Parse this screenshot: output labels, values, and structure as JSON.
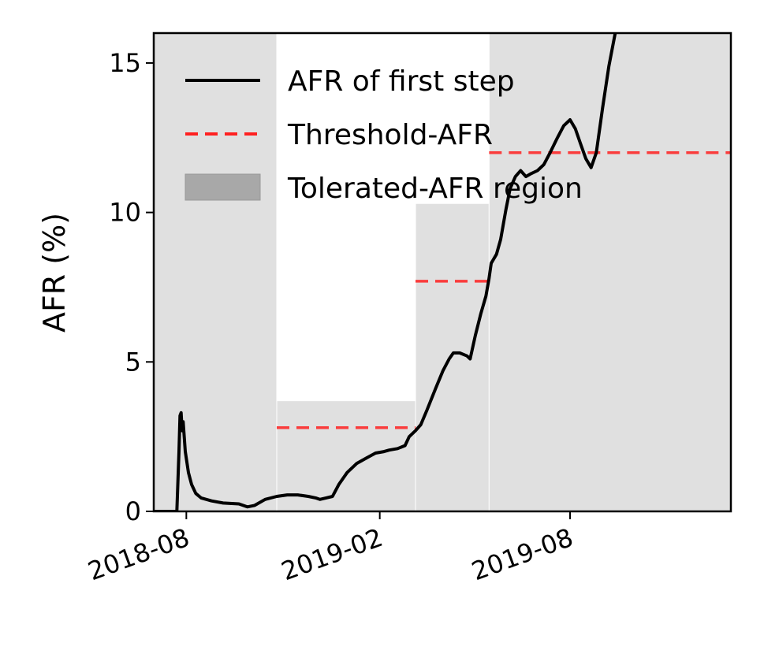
{
  "chart_data": {
    "type": "line",
    "title": "",
    "xlabel": "",
    "ylabel": "AFR (%)",
    "ylim": [
      0,
      16
    ],
    "xlim": [
      "2018-07-01",
      "2020-01-01"
    ],
    "x_ticks": [
      "2018-08",
      "2019-02",
      "2019-08"
    ],
    "y_ticks": [
      0,
      5,
      10,
      15
    ],
    "grid": false,
    "legend_position": "top-left",
    "legend": {
      "line_label": "AFR of first step",
      "threshold_label": "Threshold-AFR",
      "region_label": "Tolerated-AFR region"
    },
    "colors": {
      "line": "#000000",
      "threshold": "#ff2020",
      "region": "#e0e0e0",
      "region_legend": "#a8a8a8"
    },
    "tolerated_regions": [
      {
        "start": "2018-07-01",
        "end": "2018-10-26",
        "top": 16
      },
      {
        "start": "2018-10-26",
        "end": "2019-03-07",
        "top": 3.7
      },
      {
        "start": "2019-03-07",
        "end": "2019-05-16",
        "top": 10.3
      },
      {
        "start": "2019-05-16",
        "end": "2020-01-01",
        "top": 16
      }
    ],
    "thresholds": [
      {
        "start": "2018-10-26",
        "end": "2019-03-07",
        "value": 2.8
      },
      {
        "start": "2019-03-07",
        "end": "2019-05-16",
        "value": 7.7
      },
      {
        "start": "2019-05-16",
        "end": "2020-01-01",
        "value": 12.0
      }
    ],
    "series": [
      {
        "name": "AFR of first step",
        "points": [
          [
            "2018-07-23",
            0.0
          ],
          [
            "2018-07-25",
            2.0
          ],
          [
            "2018-07-26",
            3.2
          ],
          [
            "2018-07-27",
            3.3
          ],
          [
            "2018-07-28",
            2.7
          ],
          [
            "2018-07-29",
            3.0
          ],
          [
            "2018-07-31",
            2.0
          ],
          [
            "2018-08-03",
            1.3
          ],
          [
            "2018-08-06",
            0.9
          ],
          [
            "2018-08-10",
            0.6
          ],
          [
            "2018-08-15",
            0.45
          ],
          [
            "2018-08-25",
            0.35
          ],
          [
            "2018-09-05",
            0.28
          ],
          [
            "2018-09-20",
            0.25
          ],
          [
            "2018-09-28",
            0.15
          ],
          [
            "2018-10-05",
            0.2
          ],
          [
            "2018-10-15",
            0.4
          ],
          [
            "2018-10-26",
            0.5
          ],
          [
            "2018-11-05",
            0.55
          ],
          [
            "2018-11-15",
            0.55
          ],
          [
            "2018-11-25",
            0.5
          ],
          [
            "2018-12-02",
            0.45
          ],
          [
            "2018-12-06",
            0.4
          ],
          [
            "2018-12-12",
            0.45
          ],
          [
            "2018-12-18",
            0.5
          ],
          [
            "2018-12-24",
            0.9
          ],
          [
            "2019-01-01",
            1.3
          ],
          [
            "2019-01-10",
            1.6
          ],
          [
            "2019-01-20",
            1.8
          ],
          [
            "2019-01-28",
            1.95
          ],
          [
            "2019-02-05",
            2.0
          ],
          [
            "2019-02-10",
            2.05
          ],
          [
            "2019-02-18",
            2.1
          ],
          [
            "2019-02-25",
            2.2
          ],
          [
            "2019-03-01",
            2.5
          ],
          [
            "2019-03-07",
            2.7
          ],
          [
            "2019-03-12",
            2.9
          ],
          [
            "2019-03-18",
            3.4
          ],
          [
            "2019-03-26",
            4.1
          ],
          [
            "2019-04-02",
            4.7
          ],
          [
            "2019-04-08",
            5.1
          ],
          [
            "2019-04-12",
            5.3
          ],
          [
            "2019-04-18",
            5.3
          ],
          [
            "2019-04-25",
            5.2
          ],
          [
            "2019-04-28",
            5.1
          ],
          [
            "2019-05-03",
            5.9
          ],
          [
            "2019-05-08",
            6.6
          ],
          [
            "2019-05-13",
            7.2
          ],
          [
            "2019-05-16",
            7.8
          ],
          [
            "2019-05-18",
            8.3
          ],
          [
            "2019-05-23",
            8.6
          ],
          [
            "2019-05-27",
            9.1
          ],
          [
            "2019-06-01",
            10.1
          ],
          [
            "2019-06-05",
            10.8
          ],
          [
            "2019-06-10",
            11.2
          ],
          [
            "2019-06-15",
            11.4
          ],
          [
            "2019-06-20",
            11.2
          ],
          [
            "2019-06-25",
            11.3
          ],
          [
            "2019-07-01",
            11.4
          ],
          [
            "2019-07-07",
            11.6
          ],
          [
            "2019-07-13",
            12.0
          ],
          [
            "2019-07-20",
            12.5
          ],
          [
            "2019-07-26",
            12.9
          ],
          [
            "2019-08-01",
            13.1
          ],
          [
            "2019-08-06",
            12.8
          ],
          [
            "2019-08-11",
            12.3
          ],
          [
            "2019-08-16",
            11.8
          ],
          [
            "2019-08-21",
            11.5
          ],
          [
            "2019-08-26",
            12.0
          ],
          [
            "2019-09-01",
            13.5
          ],
          [
            "2019-09-07",
            14.9
          ],
          [
            "2019-09-13",
            16.0
          ]
        ]
      }
    ]
  }
}
